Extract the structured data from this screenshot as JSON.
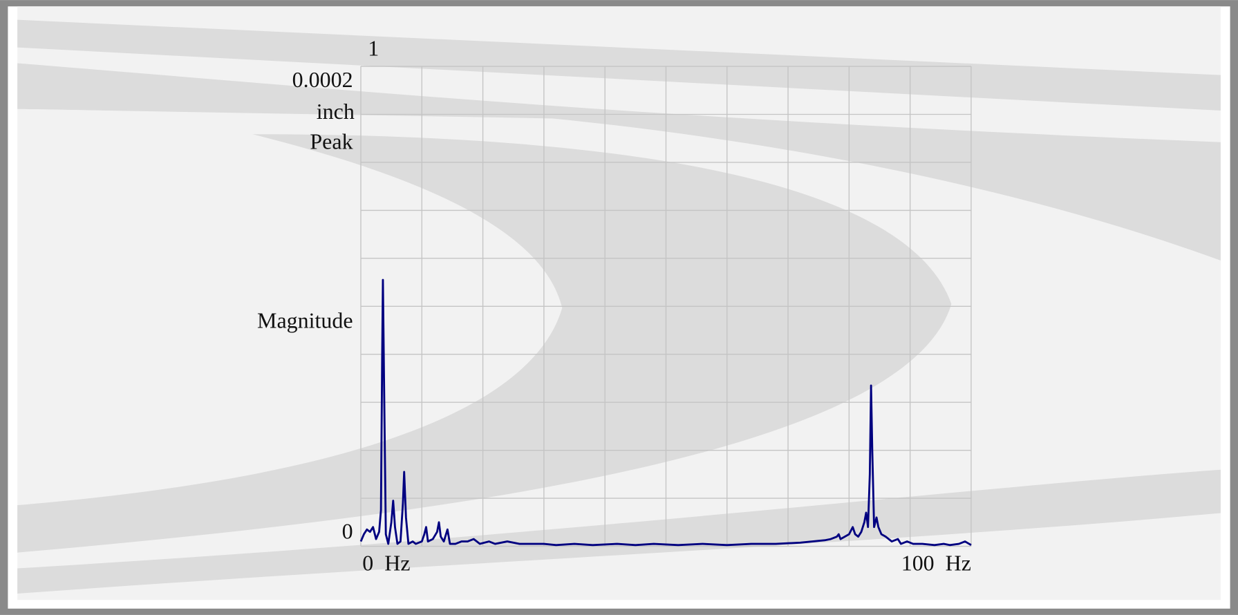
{
  "chart_data": {
    "type": "line",
    "title": "1",
    "y_label": "Magnitude",
    "y_unit": [
      "inch",
      "Peak"
    ],
    "color": "#000080",
    "grid": true,
    "xlim": [
      0,
      100
    ],
    "ylim": [
      0,
      0.0002
    ],
    "xticks": [
      {
        "value": 0,
        "label": "0  Hz"
      },
      {
        "value": 100,
        "label": "100  Hz"
      }
    ],
    "yticks": [
      0,
      0.0002
    ],
    "xgrid": [
      0,
      10,
      20,
      30,
      40,
      50,
      60,
      70,
      80,
      90,
      100
    ],
    "ygrid": [
      0,
      2e-05,
      4e-05,
      6e-05,
      8e-05,
      0.0001,
      0.00012,
      0.00014,
      0.00016,
      0.00018,
      0.0002
    ],
    "x": [
      0,
      0.5,
      1,
      1.5,
      2,
      2.5,
      3,
      3.3,
      3.5,
      3.62,
      3.8,
      4.1,
      4.5,
      5.0,
      5.3,
      5.6,
      6.0,
      6.5,
      6.9,
      7.1,
      7.4,
      7.8,
      8.5,
      9.0,
      10.0,
      10.4,
      10.7,
      11.0,
      11.8,
      12.5,
      12.8,
      13.1,
      13.6,
      14.2,
      14.6,
      15.5,
      16.5,
      17.5,
      18.5,
      19.5,
      21,
      22,
      24,
      26,
      28,
      30,
      32,
      35,
      38,
      42,
      45,
      48,
      52,
      56,
      60,
      64,
      68,
      72,
      74,
      76,
      77,
      78,
      78.3,
      78.6,
      79.3,
      80,
      80.6,
      81,
      81.5,
      82,
      82.5,
      82.8,
      83.1,
      83.4,
      83.6,
      83.8,
      84.1,
      84.5,
      84.8,
      85.3,
      86,
      87,
      88,
      88.5,
      89.5,
      90.5,
      92,
      94,
      95.5,
      96.5,
      98,
      99,
      100
    ],
    "values": [
      2e-06,
      5e-06,
      7e-06,
      6e-06,
      8e-06,
      3e-06,
      6e-06,
      1.5e-05,
      8e-05,
      0.000111,
      7e-05,
      5e-06,
      1e-06,
      1e-05,
      1.9e-05,
      8e-06,
      1e-06,
      2e-06,
      1.8e-05,
      3.1e-05,
      1.2e-05,
      1e-06,
      2e-06,
      1e-06,
      2e-06,
      5e-06,
      8e-06,
      2e-06,
      3e-06,
      6e-06,
      1e-05,
      4e-06,
      2e-06,
      7e-06,
      1e-06,
      1e-06,
      2e-06,
      2e-06,
      3e-06,
      1e-06,
      2e-06,
      1e-06,
      2e-06,
      1e-06,
      1e-06,
      1e-06,
      5e-07,
      1e-06,
      5e-07,
      1e-06,
      5e-07,
      1e-06,
      5e-07,
      1e-06,
      5e-07,
      1e-06,
      1e-06,
      1.5e-06,
      2e-06,
      2.5e-06,
      3e-06,
      4e-06,
      5e-06,
      3e-06,
      4e-06,
      5e-06,
      8e-06,
      5e-06,
      4e-06,
      6e-06,
      1e-05,
      1.4e-05,
      8e-06,
      3e-05,
      6.7e-05,
      4e-05,
      8e-06,
      1.2e-05,
      8e-06,
      5e-06,
      4e-06,
      2e-06,
      3e-06,
      1e-06,
      2e-06,
      1e-06,
      1e-06,
      5e-07,
      1e-06,
      5e-07,
      1e-06,
      2e-06,
      5e-07
    ]
  }
}
